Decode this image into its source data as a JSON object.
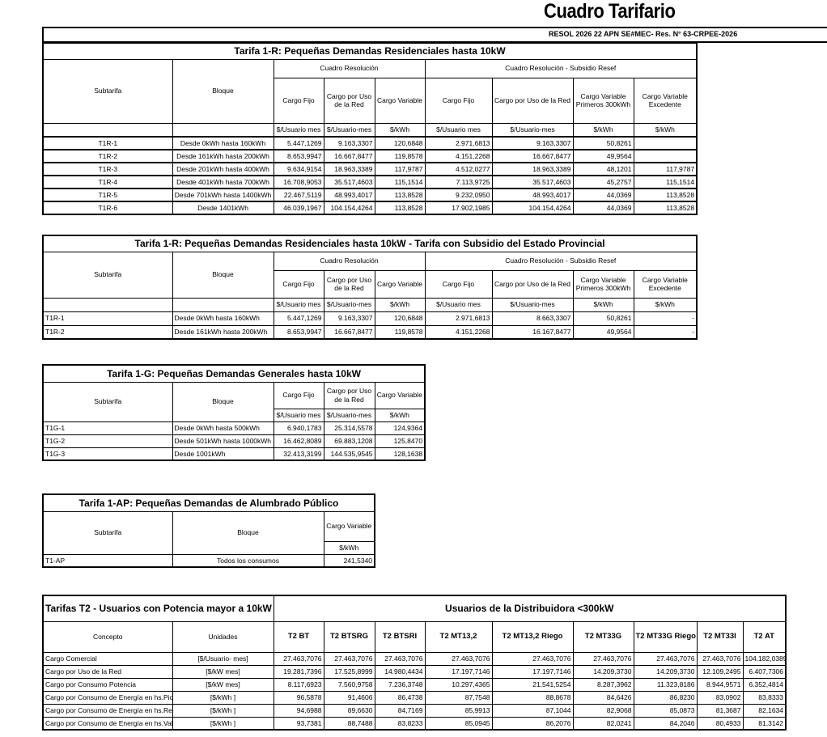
{
  "header": {
    "title": "Cuadro Tarifario",
    "resolution": "RESOL 2026 22 APN SE#MEC-     Res. N° 63-CRPEE-2026"
  },
  "tarifa_1r": {
    "title": "Tarifa 1-R: Pequeñas Demandas Residenciales hasta 10kW",
    "subtarifa_label": "Subtarifa",
    "bloque_label": "Bloque",
    "groups": [
      "Cuadro Resolución",
      "Cuadro Resolución - Subsidio Resef"
    ],
    "columns": [
      "Cargo Fijo",
      "Cargo por Uso de la Red",
      "Cargo Variable",
      "Cargo Fijo",
      "Cargo por Uso de la Red",
      "Cargo Variable Primeros 300kWh",
      "Cargo Variable Excedente"
    ],
    "units": [
      "$/Usuario mes",
      "$/Usuario-mes",
      "$/kWh",
      "$/Usuario mes",
      "$/Usuario-mes",
      "$/kWh",
      "$/kWh"
    ],
    "rows": [
      {
        "subtarifa": "T1R-1",
        "bloque": "Desde 0kWh hasta 160kWh",
        "values": [
          "5.447,1269",
          "9.163,3307",
          "120,6848",
          "2.971,6813",
          "9.163,3307",
          "50,8261",
          ""
        ]
      },
      {
        "subtarifa": "T1R-2",
        "bloque": "Desde 161kWh hasta 200kWh",
        "values": [
          "8.653,9947",
          "16.667,8477",
          "119,8578",
          "4.151,2268",
          "16.667,8477",
          "49,9564",
          ""
        ]
      },
      {
        "subtarifa": "T1R-3",
        "bloque": "Desde 201kWh hasta 400kWh",
        "values": [
          "9.634,9154",
          "18.963,3389",
          "117,9787",
          "4.512,0277",
          "18.963,3389",
          "48,1201",
          "117,9787"
        ]
      },
      {
        "subtarifa": "T1R-4",
        "bloque": "Desde 401kWh hasta 700kWh",
        "values": [
          "16.708,9053",
          "35.517,4603",
          "115,1514",
          "7.113,9725",
          "35.517,4603",
          "45,2757",
          "115,1514"
        ]
      },
      {
        "subtarifa": "T1R-5",
        "bloque": "Desde 701kWh hasta 1400kWh",
        "values": [
          "22.467,5119",
          "48.993,4017",
          "113,8528",
          "9.232,0950",
          "48.993,4017",
          "44,0369",
          "113,8528"
        ]
      },
      {
        "subtarifa": "T1R-6",
        "bloque": "Desde 1401kWh",
        "values": [
          "46.039,1967",
          "104.154,4264",
          "113,8528",
          "17.902,1985",
          "104.154,4264",
          "44,0369",
          "113,8528"
        ]
      }
    ]
  },
  "tarifa_1r_subsidio": {
    "title": "Tarifa 1-R: Pequeñas Demandas Residenciales hasta 10kW - Tarifa con Subsidio del Estado Provincial",
    "subtarifa_label": "Subtarifa",
    "bloque_label": "Bloque",
    "groups": [
      "Cuadro Resolución",
      "Cuadro Resolución - Subsidio Resef"
    ],
    "columns": [
      "Cargo Fijo",
      "Cargo por Uso de la Red",
      "Cargo Variable",
      "Cargo Fijo",
      "Cargo por Uso de la Red",
      "Cargo Variable Primeros 300kWh",
      "Cargo Variable Excedente"
    ],
    "units": [
      "$/Usuario mes",
      "$/Usuario-mes",
      "$/kWh",
      "$/Usuario mes",
      "$/Usuario-mes",
      "$/kWh",
      "$/kWh"
    ],
    "rows": [
      {
        "subtarifa": "T1R-1",
        "bloque": "Desde 0kWh hasta 160kWh",
        "values": [
          "5.447,1269",
          "9.163,3307",
          "120,6848",
          "2.971,6813",
          "8.663,3307",
          "50,8261",
          "-"
        ]
      },
      {
        "subtarifa": "T1R-2",
        "bloque": "Desde 161kWh hasta 200kWh",
        "values": [
          "8.653,9947",
          "16.667,8477",
          "119,8578",
          "4.151,2268",
          "16.167,8477",
          "49,9564",
          "-"
        ]
      }
    ]
  },
  "tarifa_1g": {
    "title": "Tarifa 1-G: Pequeñas Demandas Generales hasta 10kW",
    "subtarifa_label": "Subtarifa",
    "bloque_label": "Bloque",
    "columns": [
      "Cargo Fijo",
      "Cargo por Uso de la Red",
      "Cargo Variable"
    ],
    "units": [
      "$/Usuario mes",
      "$/Usuario-mes",
      "$/kWh"
    ],
    "rows": [
      {
        "subtarifa": "T1G-1",
        "bloque": "Desde 0kWh hasta 500kWh",
        "values": [
          "6.940,1783",
          "25.314,5578",
          "124,9364"
        ]
      },
      {
        "subtarifa": "T1G-2",
        "bloque": "Desde 501kWh hasta 1000kWh",
        "values": [
          "16.462,8089",
          "69.883,1208",
          "125,8470"
        ]
      },
      {
        "subtarifa": "T1G-3",
        "bloque": "Desde 1001kWh",
        "values": [
          "32.413,3199",
          "144.535,9545",
          "128,1638"
        ]
      }
    ]
  },
  "tarifa_1ap": {
    "title": "Tarifa 1-AP: Pequeñas Demandas de Alumbrado Público",
    "subtarifa_label": "Subtarifa",
    "bloque_label": "Bloque",
    "columns": [
      "Cargo Variable"
    ],
    "units": [
      "$/kWh"
    ],
    "rows": [
      {
        "subtarifa": "T1-AP",
        "bloque": "Todos los consumos",
        "values": [
          "241,5340"
        ]
      }
    ]
  },
  "tarifas_t2": {
    "title": "Tarifas T2 - Usuarios con Potencia mayor a 10kW",
    "group": "Usuarios de la Distribuidora <300kW",
    "concepto_label": "Concepto",
    "unidades_label": "Unidades",
    "columns": [
      "T2 BT",
      "T2 BTSRG",
      "T2 BTSRI",
      "T2 MT13,2",
      "T2 MT13,2 Riego",
      "T2 MT33G",
      "T2 MT33G Riego",
      "T2 MT33I",
      "T2 AT"
    ],
    "rows": [
      {
        "concepto": "Cargo Comercial",
        "unidades": "[$/Usuario- mes]",
        "values": [
          "27.463,7076",
          "27.463,7076",
          "27.463,7076",
          "27.463,7076",
          "27.463,7076",
          "27.463,7076",
          "27.463,7076",
          "27.463,7076",
          "104.182,0389"
        ]
      },
      {
        "concepto": "Cargo por Uso de la Red",
        "unidades": "[$/kW mes]",
        "values": [
          "19.281,7396",
          "17.525,8999",
          "14.980,4434",
          "17.197,7146",
          "17.197,7146",
          "14.209,3730",
          "14.209,3730",
          "12.109,2495",
          "6.407,7306"
        ]
      },
      {
        "concepto": "Cargo por Consumo Potencia",
        "unidades": "[$/kW mes]",
        "values": [
          "8.117,6923",
          "7.560,9758",
          "7.236,3748",
          "10.297,4365",
          "21.541,5254",
          "8.287,3962",
          "11.323,8186",
          "8.944,9571",
          "6.352,4814"
        ]
      },
      {
        "concepto": "Cargo por Consumo de Energía en hs.Pico",
        "unidades": "[$/kWh ]",
        "values": [
          "96,5878",
          "91,4606",
          "86,4738",
          "87,7548",
          "88,8678",
          "84,6426",
          "86,8230",
          "83,0902",
          "83,8333"
        ]
      },
      {
        "concepto": "Cargo por Consumo de Energía en hs.Resto",
        "unidades": "[$/kWh ]",
        "values": [
          "94,6988",
          "89,6630",
          "84,7169",
          "85,9913",
          "87,1044",
          "82,9068",
          "85,0873",
          "81,3687",
          "82,1634"
        ]
      },
      {
        "concepto": "Cargo por Consumo de Energía en hs.Valle",
        "unidades": "[$/kWh ]",
        "values": [
          "93,7381",
          "88,7488",
          "83,8233",
          "85,0945",
          "86,2076",
          "82,0241",
          "84,2046",
          "80,4933",
          "81,3142"
        ]
      }
    ]
  }
}
